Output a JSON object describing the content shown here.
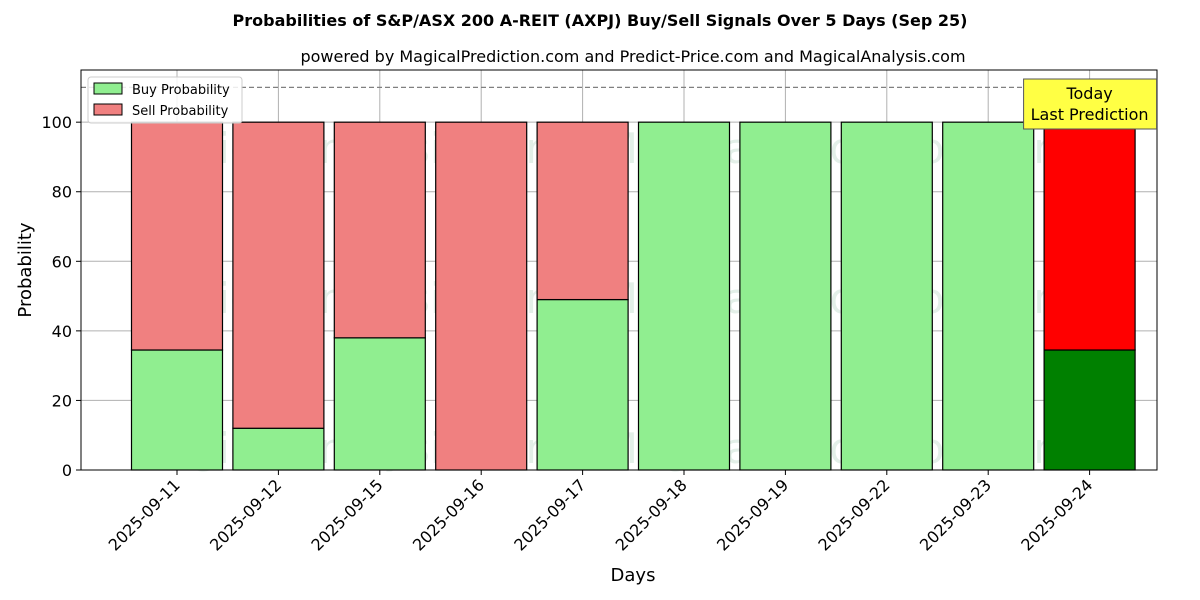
{
  "chart_data": {
    "type": "bar",
    "stacked": true,
    "title": "Probabilities of S&P/ASX 200 A-REIT (AXPJ) Buy/Sell Signals Over 5 Days (Sep 25)",
    "subtitle": "powered by MagicalPrediction.com and Predict-Price.com and MagicalAnalysis.com",
    "xlabel": "Days",
    "ylabel": "Probability",
    "ylim": [
      0,
      115
    ],
    "yticks": [
      0,
      20,
      40,
      60,
      80,
      100
    ],
    "reference_line": 110,
    "grid": true,
    "legend_position": "top-left",
    "categories": [
      "2025-09-11",
      "2025-09-12",
      "2025-09-15",
      "2025-09-16",
      "2025-09-17",
      "2025-09-18",
      "2025-09-19",
      "2025-09-22",
      "2025-09-23",
      "2025-09-24"
    ],
    "series": [
      {
        "name": "Buy Probability",
        "values": [
          34.5,
          12,
          38,
          0,
          49,
          100,
          100,
          100,
          100,
          34.5
        ]
      },
      {
        "name": "Sell Probability",
        "values": [
          65.5,
          88,
          62,
          100,
          51,
          0,
          0,
          0,
          0,
          65.5
        ]
      }
    ],
    "colors": {
      "buy": "#90ee90",
      "sell": "#f08080",
      "buy_today": "#008000",
      "sell_today": "#ff0000",
      "annotation_bg": "#ffff44"
    },
    "annotation": {
      "lines": [
        "Today",
        "Last Prediction"
      ],
      "category": "2025-09-24"
    },
    "watermarks": [
      "MagicalAnalysis.com",
      "MagicalPrediction.com"
    ]
  }
}
